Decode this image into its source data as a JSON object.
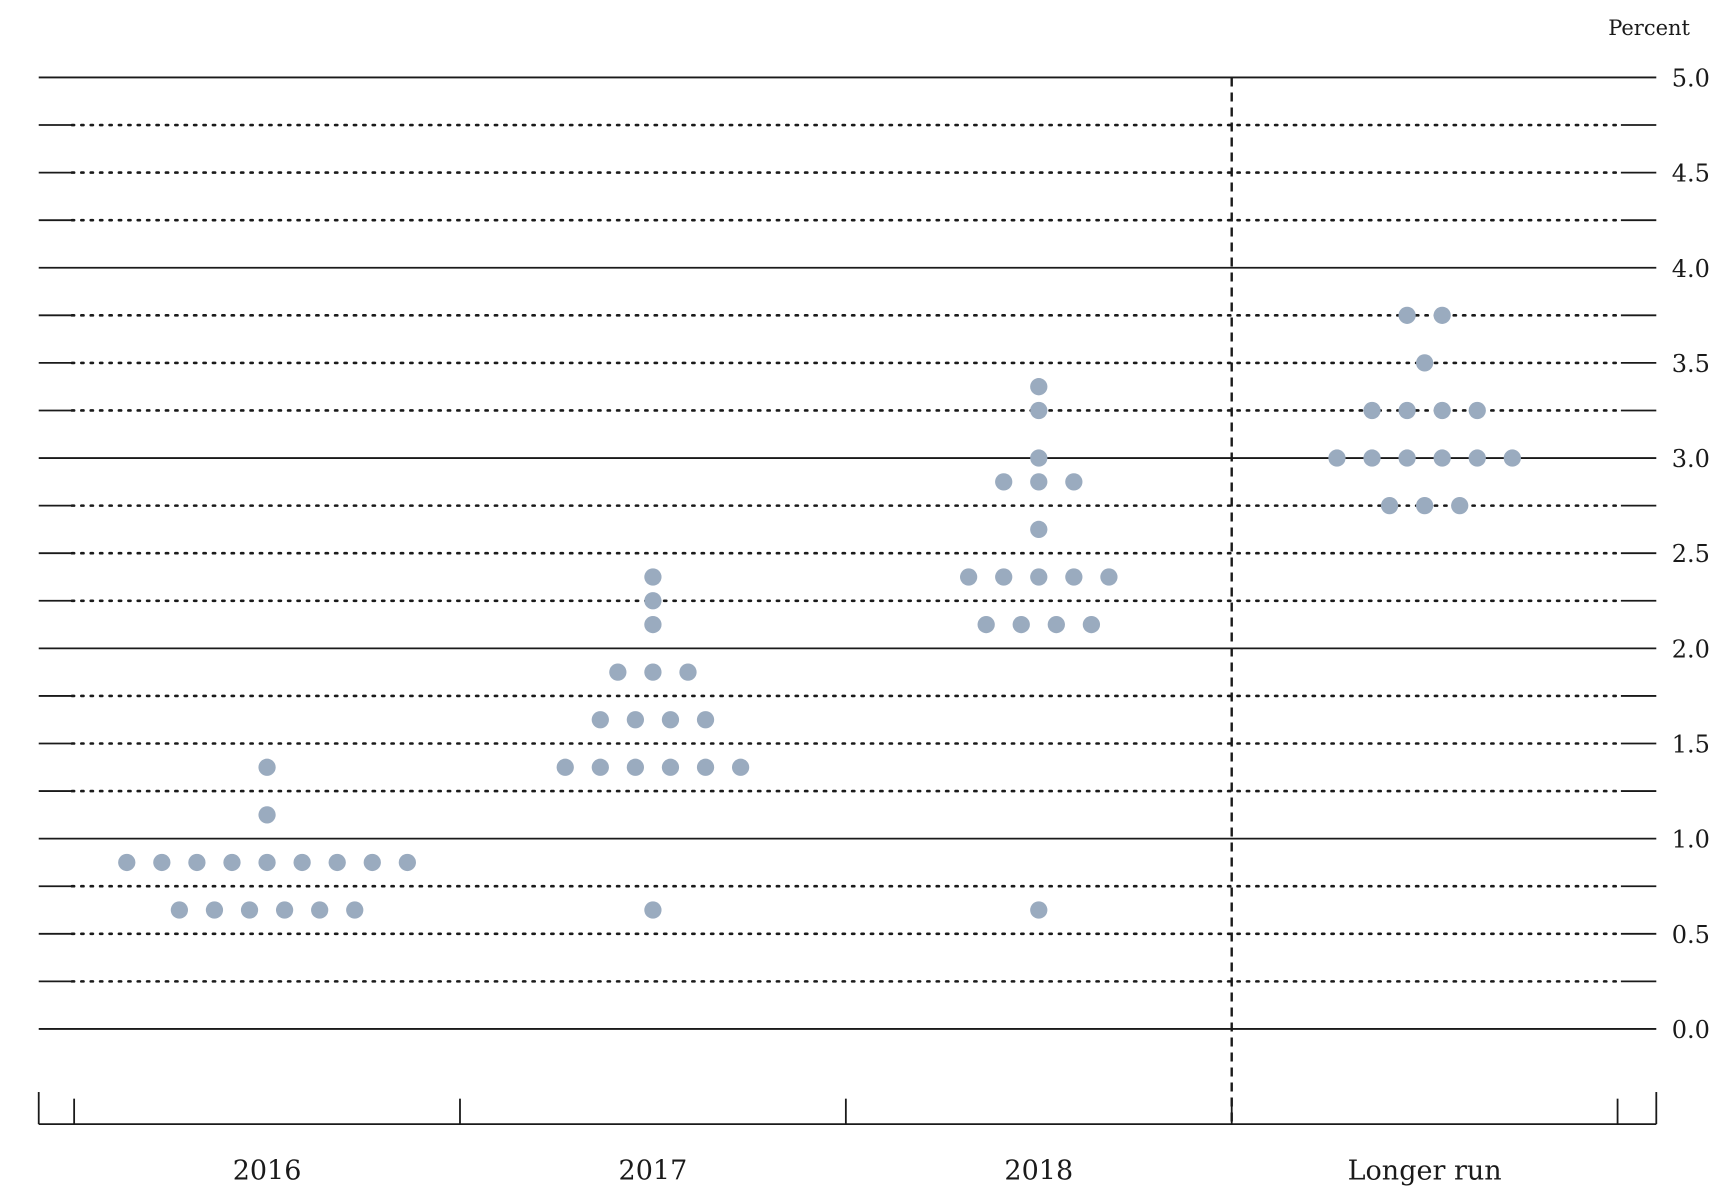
{
  "chart_data": {
    "type": "scatter",
    "ylabel": "Percent",
    "ylim": [
      0,
      5
    ],
    "yticks": [
      "5.0",
      "4.5",
      "4.0",
      "3.5",
      "3.0",
      "2.5",
      "2.0",
      "1.5",
      "1.0",
      "0.5",
      "0.0"
    ],
    "categories": [
      "2016",
      "2017",
      "2018",
      "Longer run"
    ],
    "dot_color": "#9aabbf",
    "separator_after_category": "2018",
    "series": [
      {
        "category": "2016",
        "points": [
          {
            "y": 1.375,
            "count": 1
          },
          {
            "y": 1.125,
            "count": 1
          },
          {
            "y": 0.875,
            "count": 9
          },
          {
            "y": 0.625,
            "count": 6
          }
        ]
      },
      {
        "category": "2017",
        "points": [
          {
            "y": 2.375,
            "count": 1
          },
          {
            "y": 2.25,
            "count": 1
          },
          {
            "y": 2.125,
            "count": 1
          },
          {
            "y": 1.875,
            "count": 3
          },
          {
            "y": 1.625,
            "count": 4
          },
          {
            "y": 1.375,
            "count": 6
          },
          {
            "y": 0.625,
            "count": 1
          }
        ]
      },
      {
        "category": "2018",
        "points": [
          {
            "y": 3.375,
            "count": 1
          },
          {
            "y": 3.25,
            "count": 1
          },
          {
            "y": 3.0,
            "count": 1
          },
          {
            "y": 2.875,
            "count": 3
          },
          {
            "y": 2.625,
            "count": 1
          },
          {
            "y": 2.375,
            "count": 5
          },
          {
            "y": 2.125,
            "count": 4
          },
          {
            "y": 0.625,
            "count": 1
          }
        ]
      },
      {
        "category": "Longer run",
        "points": [
          {
            "y": 3.75,
            "count": 2
          },
          {
            "y": 3.5,
            "count": 1
          },
          {
            "y": 3.25,
            "count": 4
          },
          {
            "y": 3.0,
            "count": 6
          },
          {
            "y": 2.75,
            "count": 3
          }
        ]
      }
    ]
  }
}
